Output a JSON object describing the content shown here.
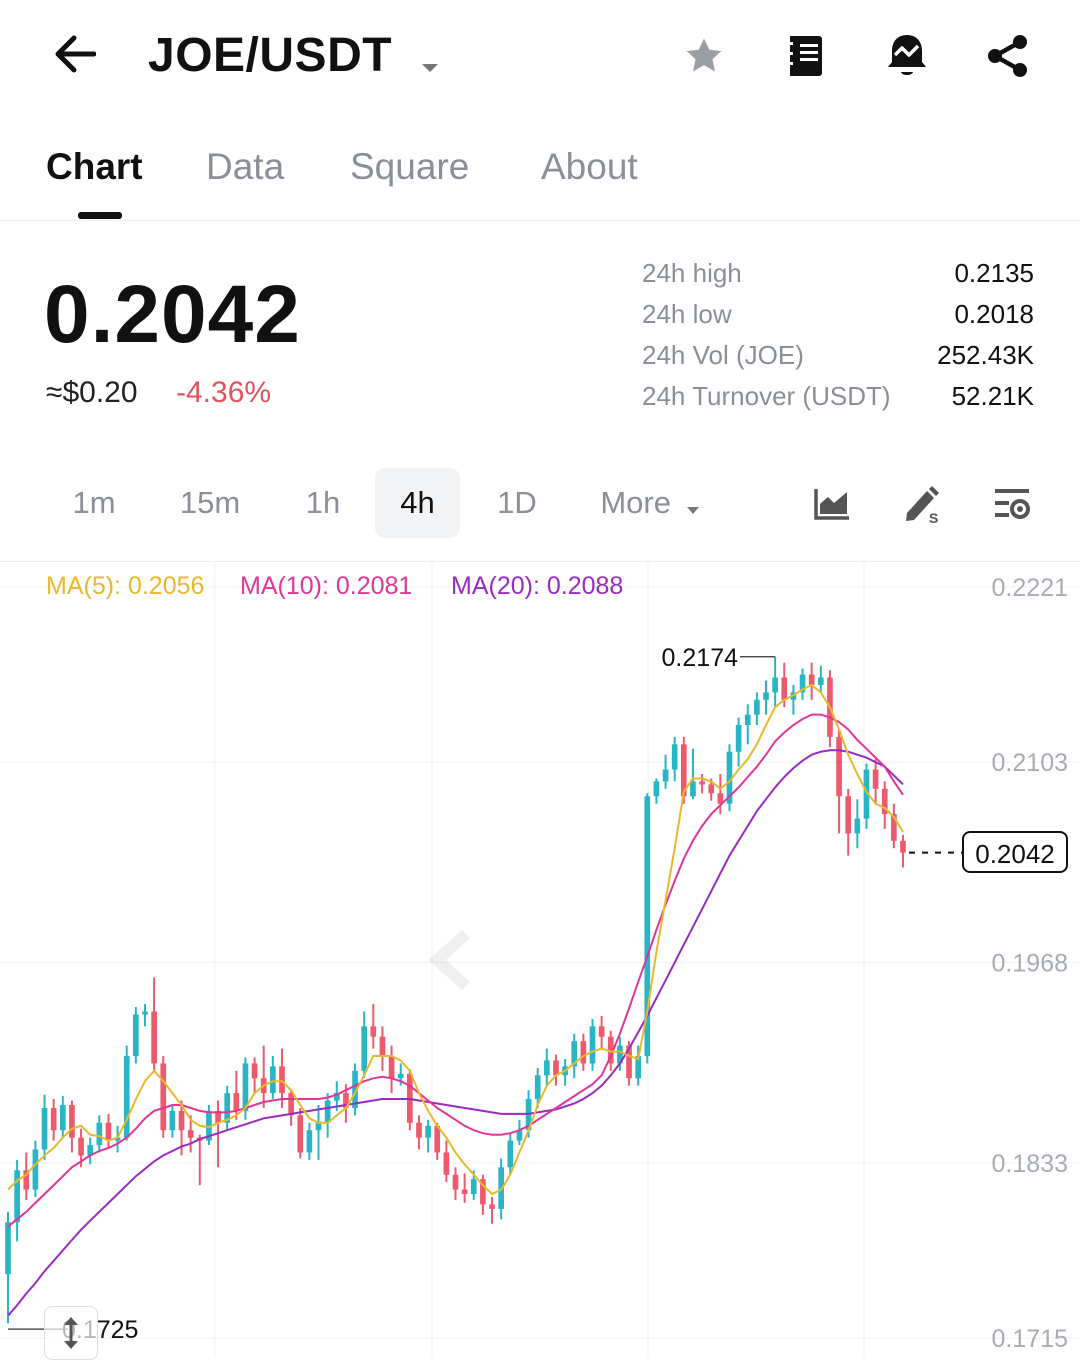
{
  "header": {
    "pair": "JOE/USDT",
    "icons": [
      "back-arrow-icon",
      "star-icon",
      "book-icon",
      "alert-bell-icon",
      "share-icon"
    ]
  },
  "tabs": [
    {
      "label": "Chart",
      "active": true
    },
    {
      "label": "Data"
    },
    {
      "label": "Square"
    },
    {
      "label": "About"
    }
  ],
  "price": {
    "last": "0.2042",
    "usd": "≈$0.20",
    "change": "-4.36%"
  },
  "stats": [
    {
      "label": "24h high",
      "value": "0.2135"
    },
    {
      "label": "24h low",
      "value": "0.2018"
    },
    {
      "label": "24h Vol (JOE)",
      "value": "252.43K"
    },
    {
      "label": "24h Turnover (USDT)",
      "value": "52.21K"
    }
  ],
  "intervals": [
    "1m",
    "15m",
    "1h",
    "4h",
    "1D"
  ],
  "intervals_active": "4h",
  "more_label": "More",
  "indicators": {
    "ma5": "MA(5): 0.2056",
    "ma10": "MA(10): 0.2081",
    "ma20": "MA(20): 0.2088"
  },
  "colors": {
    "up": "#2ab5c6",
    "down": "#ec5a6c",
    "ma5": "#e8b92d",
    "ma10": "#e0359a",
    "ma20": "#9b2bc0",
    "negative_text": "#e2535f"
  },
  "chart_data": {
    "type": "candlestick",
    "interval": "4h",
    "y_ticks": [
      0.2221,
      0.2103,
      0.1968,
      0.1833,
      0.1715
    ],
    "y_tick_labels": [
      "0.2221",
      "0.2103",
      "0.1968",
      "0.1833",
      "0.1715"
    ],
    "high_label": "0.2174",
    "low_label": "0.1725",
    "last_price_label": "0.2042",
    "candles": [
      [
        0.1758,
        0.1793,
        0.1725,
        0.18
      ],
      [
        0.1793,
        0.1828,
        0.178,
        0.1835
      ],
      [
        0.1828,
        0.1815,
        0.1808,
        0.184
      ],
      [
        0.1815,
        0.1842,
        0.181,
        0.1848
      ],
      [
        0.1842,
        0.187,
        0.1835,
        0.1879
      ],
      [
        0.187,
        0.1855,
        0.1848,
        0.1876
      ],
      [
        0.1855,
        0.1872,
        0.185,
        0.1878
      ],
      [
        0.1872,
        0.185,
        0.184,
        0.1875
      ],
      [
        0.185,
        0.1838,
        0.183,
        0.1856
      ],
      [
        0.1838,
        0.1845,
        0.1832,
        0.185
      ],
      [
        0.1845,
        0.186,
        0.184,
        0.1865
      ],
      [
        0.186,
        0.1848,
        0.1843,
        0.1866
      ],
      [
        0.1848,
        0.185,
        0.184,
        0.1858
      ],
      [
        0.185,
        0.1905,
        0.1848,
        0.1912
      ],
      [
        0.1905,
        0.1933,
        0.19,
        0.1938
      ],
      [
        0.1933,
        0.1935,
        0.1925,
        0.194
      ],
      [
        0.1935,
        0.19,
        0.1895,
        0.1958
      ],
      [
        0.19,
        0.1855,
        0.185,
        0.1905
      ],
      [
        0.1855,
        0.1868,
        0.185,
        0.1872
      ],
      [
        0.1868,
        0.1855,
        0.1838,
        0.1875
      ],
      [
        0.1855,
        0.185,
        0.184,
        0.1865
      ],
      [
        0.185,
        0.1848,
        0.1818,
        0.1852
      ],
      [
        0.1848,
        0.1868,
        0.1845,
        0.1872
      ],
      [
        0.1868,
        0.186,
        0.183,
        0.1875
      ],
      [
        0.186,
        0.188,
        0.1855,
        0.1885
      ],
      [
        0.188,
        0.1868,
        0.1862,
        0.1895
      ],
      [
        0.1868,
        0.19,
        0.1862,
        0.1904
      ],
      [
        0.19,
        0.189,
        0.188,
        0.1904
      ],
      [
        0.189,
        0.188,
        0.187,
        0.1912
      ],
      [
        0.188,
        0.1898,
        0.1876,
        0.1905
      ],
      [
        0.1898,
        0.188,
        0.187,
        0.191
      ],
      [
        0.188,
        0.1865,
        0.1858,
        0.1882
      ],
      [
        0.1865,
        0.184,
        0.1836,
        0.187
      ],
      [
        0.184,
        0.1855,
        0.1835,
        0.186
      ],
      [
        0.1855,
        0.186,
        0.1835,
        0.1872
      ],
      [
        0.186,
        0.1875,
        0.185,
        0.188
      ],
      [
        0.1875,
        0.188,
        0.1868,
        0.1888
      ],
      [
        0.188,
        0.187,
        0.186,
        0.1886
      ],
      [
        0.187,
        0.1895,
        0.1865,
        0.19
      ],
      [
        0.1895,
        0.1925,
        0.189,
        0.1935
      ],
      [
        0.1925,
        0.1918,
        0.191,
        0.194
      ],
      [
        0.1918,
        0.1905,
        0.1895,
        0.1925
      ],
      [
        0.1905,
        0.189,
        0.188,
        0.1912
      ],
      [
        0.189,
        0.1893,
        0.1885,
        0.19
      ],
      [
        0.1893,
        0.186,
        0.1855,
        0.1896
      ],
      [
        0.186,
        0.185,
        0.1842,
        0.1865
      ],
      [
        0.185,
        0.1858,
        0.184,
        0.1862
      ],
      [
        0.1858,
        0.184,
        0.1835,
        0.186
      ],
      [
        0.184,
        0.1825,
        0.182,
        0.1848
      ],
      [
        0.1825,
        0.1815,
        0.1808,
        0.183
      ],
      [
        0.1815,
        0.1812,
        0.1806,
        0.1826
      ],
      [
        0.1812,
        0.1822,
        0.1808,
        0.1828
      ],
      [
        0.1822,
        0.1805,
        0.1798,
        0.1825
      ],
      [
        0.1805,
        0.1802,
        0.1792,
        0.181
      ],
      [
        0.1802,
        0.183,
        0.1795,
        0.1836
      ],
      [
        0.183,
        0.1848,
        0.1825,
        0.1853
      ],
      [
        0.1848,
        0.1855,
        0.1845,
        0.1862
      ],
      [
        0.1855,
        0.1876,
        0.185,
        0.1882
      ],
      [
        0.1876,
        0.1892,
        0.187,
        0.1897
      ],
      [
        0.1892,
        0.1902,
        0.1885,
        0.191
      ],
      [
        0.1902,
        0.1892,
        0.1885,
        0.1906
      ],
      [
        0.1892,
        0.1898,
        0.1885,
        0.1903
      ],
      [
        0.1898,
        0.1915,
        0.189,
        0.192
      ],
      [
        0.1915,
        0.19,
        0.1895,
        0.192
      ],
      [
        0.19,
        0.1925,
        0.1895,
        0.193
      ],
      [
        0.1925,
        0.1918,
        0.191,
        0.1932
      ],
      [
        0.1918,
        0.19,
        0.1895,
        0.1922
      ],
      [
        0.19,
        0.1912,
        0.1895,
        0.1918
      ],
      [
        0.1912,
        0.189,
        0.1885,
        0.1915
      ],
      [
        0.189,
        0.1905,
        0.1885,
        0.1912
      ],
      [
        0.1905,
        0.208,
        0.19,
        0.2082
      ],
      [
        0.208,
        0.209,
        0.2075,
        0.2092
      ],
      [
        0.209,
        0.2098,
        0.2085,
        0.2108
      ],
      [
        0.2098,
        0.2115,
        0.209,
        0.212
      ],
      [
        0.2115,
        0.208,
        0.2075,
        0.212
      ],
      [
        0.208,
        0.209,
        0.2078,
        0.2112
      ],
      [
        0.209,
        0.2088,
        0.2082,
        0.2095
      ],
      [
        0.2088,
        0.2082,
        0.2077,
        0.2092
      ],
      [
        0.2082,
        0.2075,
        0.2068,
        0.2095
      ],
      [
        0.2075,
        0.211,
        0.207,
        0.2115
      ],
      [
        0.211,
        0.2128,
        0.21,
        0.2133
      ],
      [
        0.2128,
        0.2135,
        0.2115,
        0.2142
      ],
      [
        0.2135,
        0.2145,
        0.2128,
        0.215
      ],
      [
        0.2145,
        0.215,
        0.2135,
        0.2158
      ],
      [
        0.215,
        0.216,
        0.214,
        0.2174
      ],
      [
        0.216,
        0.2145,
        0.214,
        0.217
      ],
      [
        0.2145,
        0.215,
        0.2135,
        0.2155
      ],
      [
        0.215,
        0.2162,
        0.2145,
        0.2166
      ],
      [
        0.2162,
        0.2155,
        0.2145,
        0.217
      ],
      [
        0.2155,
        0.216,
        0.215,
        0.2168
      ],
      [
        0.216,
        0.212,
        0.2113,
        0.2165
      ],
      [
        0.212,
        0.208,
        0.2055,
        0.2125
      ],
      [
        0.208,
        0.2055,
        0.204,
        0.2085
      ],
      [
        0.2055,
        0.2065,
        0.2045,
        0.2078
      ],
      [
        0.2065,
        0.2098,
        0.2058,
        0.2102
      ],
      [
        0.2098,
        0.2085,
        0.2075,
        0.2105
      ],
      [
        0.2085,
        0.2068,
        0.2058,
        0.209
      ],
      [
        0.2068,
        0.205,
        0.2045,
        0.2075
      ],
      [
        0.205,
        0.2042,
        0.2032,
        0.2054
      ]
    ],
    "ma5": [
      0.1815,
      0.1821,
      0.1825,
      0.1832,
      0.1838,
      0.1843,
      0.185,
      0.1856,
      0.1858,
      0.1852,
      0.1851,
      0.1848,
      0.185,
      0.1862,
      0.1876,
      0.1888,
      0.1895,
      0.1888,
      0.188,
      0.1872,
      0.1862,
      0.1858,
      0.1857,
      0.186,
      0.1862,
      0.1865,
      0.187,
      0.188,
      0.1885,
      0.1888,
      0.1888,
      0.1882,
      0.1872,
      0.1863,
      0.186,
      0.186,
      0.1865,
      0.187,
      0.188,
      0.1892,
      0.1905,
      0.1905,
      0.1905,
      0.1902,
      0.1895,
      0.188,
      0.1868,
      0.1858,
      0.185,
      0.184,
      0.1832,
      0.1825,
      0.1818,
      0.1812,
      0.1815,
      0.1825,
      0.184,
      0.1855,
      0.1872,
      0.1885,
      0.1892,
      0.1895,
      0.19,
      0.1905,
      0.1908,
      0.191,
      0.1908,
      0.1908,
      0.1905,
      0.1903,
      0.1935,
      0.1975,
      0.201,
      0.2045,
      0.2083,
      0.2092,
      0.2092,
      0.209,
      0.2085,
      0.209,
      0.2098,
      0.2105,
      0.2115,
      0.2128,
      0.214,
      0.2145,
      0.2148,
      0.2152,
      0.2155,
      0.215,
      0.214,
      0.2125,
      0.2108,
      0.2095,
      0.2083,
      0.2075,
      0.2072,
      0.2066,
      0.2056
    ],
    "ma10": [
      0.179,
      0.1795,
      0.18,
      0.1806,
      0.1812,
      0.1818,
      0.1824,
      0.183,
      0.1834,
      0.1838,
      0.1841,
      0.1843,
      0.1846,
      0.185,
      0.1856,
      0.1863,
      0.1868,
      0.187,
      0.1872,
      0.1872,
      0.187,
      0.1868,
      0.1867,
      0.1867,
      0.1867,
      0.1868,
      0.187,
      0.1872,
      0.1874,
      0.1875,
      0.1876,
      0.1876,
      0.1876,
      0.1876,
      0.1876,
      0.1877,
      0.1879,
      0.1882,
      0.1885,
      0.1888,
      0.189,
      0.1891,
      0.189,
      0.1888,
      0.1885,
      0.188,
      0.1875,
      0.187,
      0.1866,
      0.1862,
      0.1858,
      0.1855,
      0.1853,
      0.1852,
      0.1852,
      0.1853,
      0.1855,
      0.1858,
      0.1862,
      0.1866,
      0.187,
      0.1874,
      0.1878,
      0.1882,
      0.1886,
      0.1892,
      0.1905,
      0.192,
      0.1937,
      0.1955,
      0.1972,
      0.199,
      0.2007,
      0.2023,
      0.2038,
      0.205,
      0.206,
      0.2068,
      0.2074,
      0.208,
      0.2086,
      0.2093,
      0.21,
      0.2108,
      0.2117,
      0.2123,
      0.2128,
      0.2132,
      0.2135,
      0.2135,
      0.2133,
      0.213,
      0.2125,
      0.2118,
      0.2112,
      0.2106,
      0.21,
      0.209,
      0.2081
    ],
    "ma20": [
      0.173,
      0.1737,
      0.1745,
      0.1752,
      0.176,
      0.1767,
      0.1774,
      0.1781,
      0.1788,
      0.1794,
      0.18,
      0.1806,
      0.1812,
      0.1818,
      0.1824,
      0.1829,
      0.1834,
      0.1838,
      0.1841,
      0.1844,
      0.1846,
      0.1849,
      0.1851,
      0.1853,
      0.1855,
      0.1857,
      0.1859,
      0.1861,
      0.1863,
      0.1864,
      0.1865,
      0.1866,
      0.1867,
      0.1868,
      0.1869,
      0.187,
      0.1871,
      0.1872,
      0.1873,
      0.1874,
      0.1875,
      0.1876,
      0.1876,
      0.1876,
      0.1876,
      0.1875,
      0.1874,
      0.1873,
      0.1872,
      0.1871,
      0.187,
      0.1869,
      0.1868,
      0.1867,
      0.1866,
      0.1866,
      0.1866,
      0.1866,
      0.1867,
      0.1868,
      0.1869,
      0.1871,
      0.1873,
      0.1876,
      0.188,
      0.1885,
      0.1892,
      0.19,
      0.191,
      0.1921,
      0.1932,
      0.1944,
      0.1956,
      0.1968,
      0.198,
      0.1992,
      0.2004,
      0.2016,
      0.2028,
      0.204,
      0.205,
      0.206,
      0.207,
      0.2078,
      0.2086,
      0.2093,
      0.2099,
      0.2104,
      0.2108,
      0.211,
      0.2111,
      0.2111,
      0.211,
      0.2108,
      0.2106,
      0.2103,
      0.21,
      0.2094,
      0.2088
    ]
  }
}
